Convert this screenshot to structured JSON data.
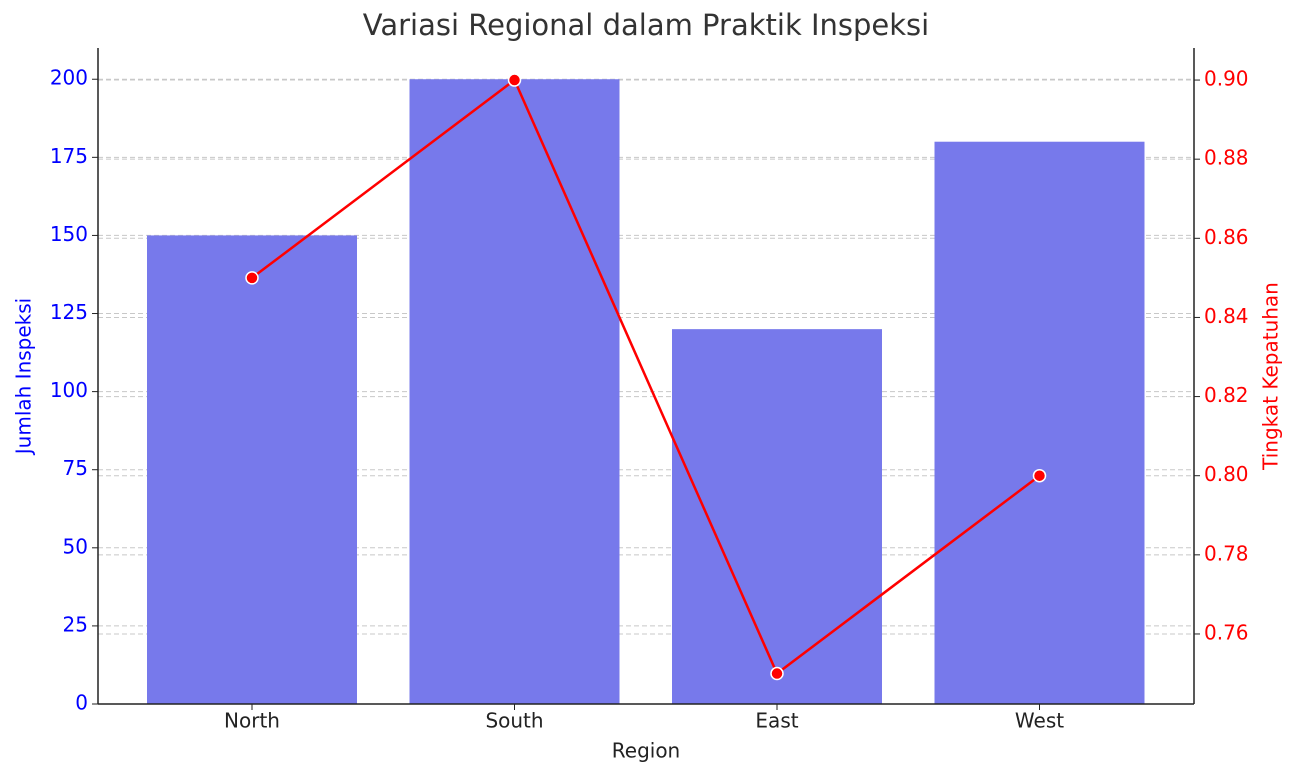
{
  "chart_data": {
    "type": "bar",
    "title": "Variasi Regional dalam Praktik Inspeksi",
    "x_label": "Region",
    "y_label": "Jumlah Inspeksi",
    "y2_label": "Tingkat Kepatuhan",
    "categories": [
      "North",
      "South",
      "East",
      "West"
    ],
    "series": [
      {
        "type": "bar",
        "color": "#7779eb",
        "values": [
          150,
          200,
          120,
          180
        ]
      },
      {
        "type": "line",
        "axis": "y2",
        "color": "#ff0000",
        "values": [
          0.85,
          0.9,
          0.75,
          0.8
        ]
      }
    ],
    "ylim": [
      0,
      210
    ],
    "yticks": [
      0,
      25,
      50,
      75,
      100,
      125,
      150,
      175,
      200
    ],
    "y2lim": [
      0.7423,
      0.9081
    ],
    "y2ticks": [
      {
        "value": 0.76,
        "label": "0.76"
      },
      {
        "value": 0.78,
        "label": "0.78"
      },
      {
        "value": 0.8,
        "label": "0.80"
      },
      {
        "value": 0.82,
        "label": "0.82"
      },
      {
        "value": 0.84,
        "label": "0.84"
      },
      {
        "value": 0.86,
        "label": "0.86"
      },
      {
        "value": 0.88,
        "label": "0.88"
      },
      {
        "value": 0.9,
        "label": "0.90"
      }
    ],
    "grid": true,
    "y_color": "#0000ff",
    "y2_color": "#ff0000"
  }
}
